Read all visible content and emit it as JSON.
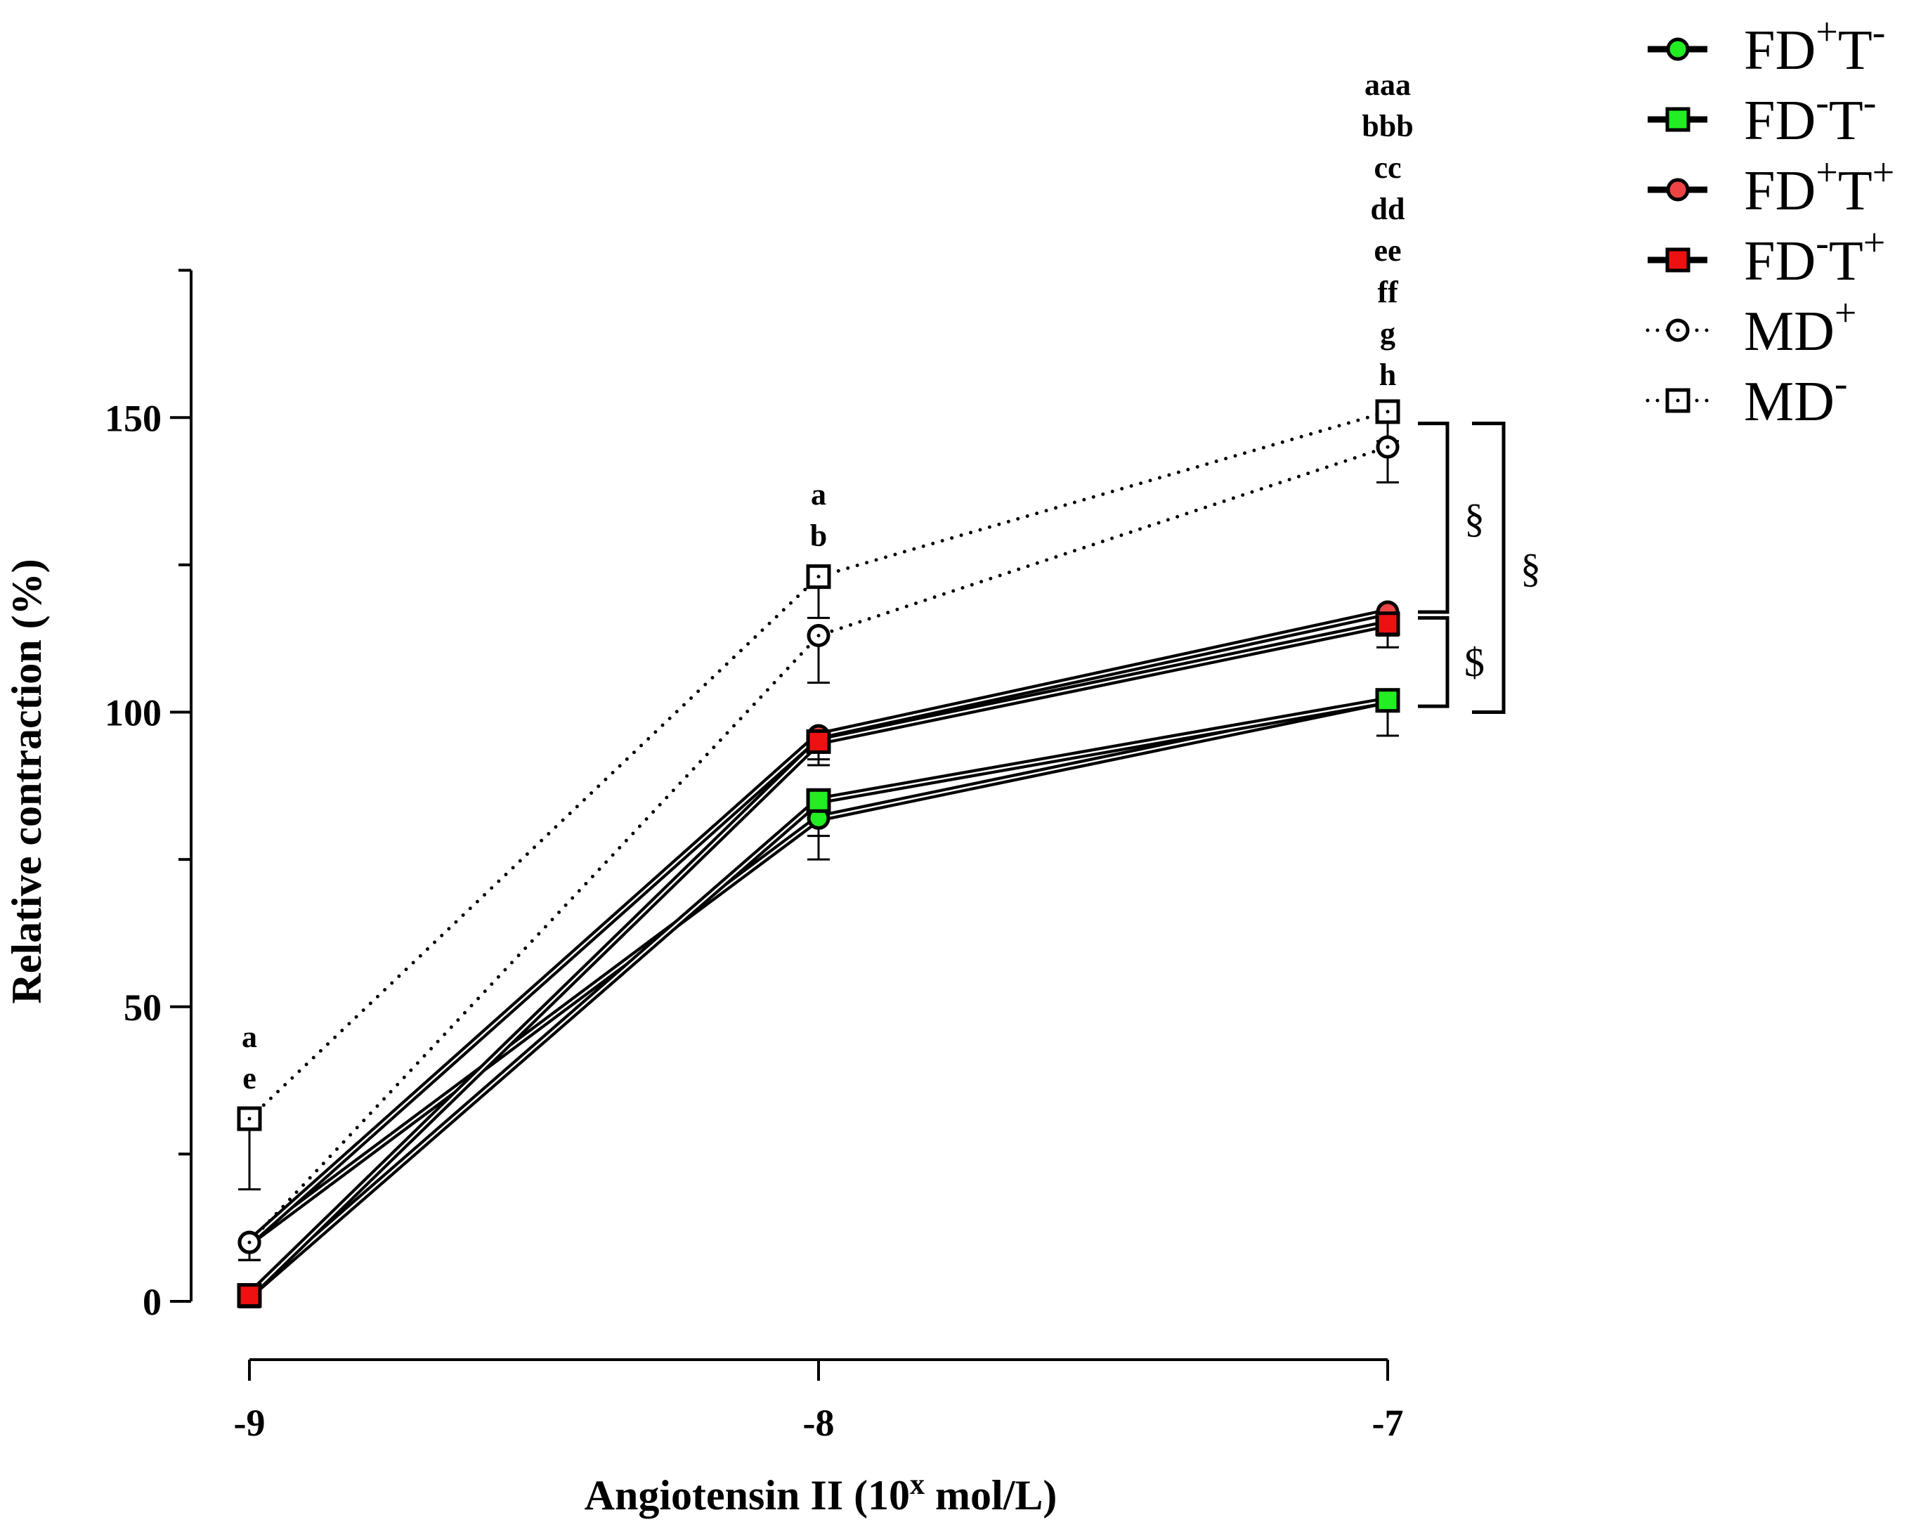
{
  "chart_data": {
    "type": "line",
    "title": "",
    "xlabel": "Angiotensin II (10^x mol/L)",
    "xlabel_parts": {
      "main": "Angiotensin II (10",
      "sup": "x",
      "tail": " mol/L)"
    },
    "ylabel": "Relative contraction (%)",
    "x": [
      -9,
      -8,
      -7
    ],
    "xticks": [
      "-9",
      "-8",
      "-7"
    ],
    "ylim": [
      -10,
      175
    ],
    "yticks_major": [
      0,
      50,
      100,
      150
    ],
    "yticks_labels": [
      "0",
      "50",
      "100",
      "150"
    ],
    "yticks_minor": [
      25,
      75,
      125,
      175
    ],
    "series": [
      {
        "name": "FD+T-",
        "base": "FD",
        "sup1": "+",
        "mid": "T",
        "sup2": "-",
        "marker": "circle",
        "fill": "#22ee22",
        "line": "solid",
        "values": [
          10,
          82,
          102
        ],
        "err": [
          3,
          7,
          6
        ]
      },
      {
        "name": "FD-T-",
        "base": "FD",
        "sup1": "-",
        "mid": "T",
        "sup2": "-",
        "marker": "square",
        "fill": "#22ee22",
        "line": "solid",
        "values": [
          1,
          85,
          102
        ],
        "err": [
          2,
          6,
          6
        ]
      },
      {
        "name": "FD+T+",
        "base": "FD",
        "sup1": "+",
        "mid": "T",
        "sup2": "+",
        "marker": "circle",
        "fill": "#ee4444",
        "line": "solid",
        "values": [
          10,
          96,
          117
        ],
        "err": [
          3,
          4,
          4
        ]
      },
      {
        "name": "FD-T+",
        "base": "FD",
        "sup1": "-",
        "mid": "T",
        "sup2": "+",
        "marker": "square",
        "fill": "#ee1111",
        "line": "solid",
        "values": [
          1,
          95,
          115
        ],
        "err": [
          2,
          4,
          4
        ]
      },
      {
        "name": "MD+",
        "base": "MD",
        "sup1": "+",
        "mid": "",
        "sup2": "",
        "marker": "circle",
        "fill": "#ffffff",
        "line": "dotted",
        "values": [
          10,
          113,
          145
        ],
        "err": [
          3,
          8,
          6
        ]
      },
      {
        "name": "MD-",
        "base": "MD",
        "sup1": "-",
        "mid": "",
        "sup2": "",
        "marker": "square",
        "fill": "#ffffff",
        "line": "dotted",
        "values": [
          31,
          123,
          151
        ],
        "err": [
          12,
          7,
          5
        ]
      }
    ],
    "annotations": [
      {
        "x": -9,
        "lines": [
          "a",
          "e"
        ]
      },
      {
        "x": -8,
        "lines": [
          "a",
          "b"
        ]
      },
      {
        "x": -7,
        "lines": [
          "aaa",
          "bbb",
          "cc",
          "dd",
          "ee",
          "ff",
          "g",
          "h"
        ]
      }
    ],
    "brackets": [
      {
        "label": "§",
        "from": 117,
        "to": 149,
        "level": 1
      },
      {
        "label": "$",
        "from": 101,
        "to": 116,
        "level": 1
      },
      {
        "label": "§",
        "from": 100,
        "to": 149,
        "level": 2
      }
    ],
    "legend_position": "top-right"
  }
}
